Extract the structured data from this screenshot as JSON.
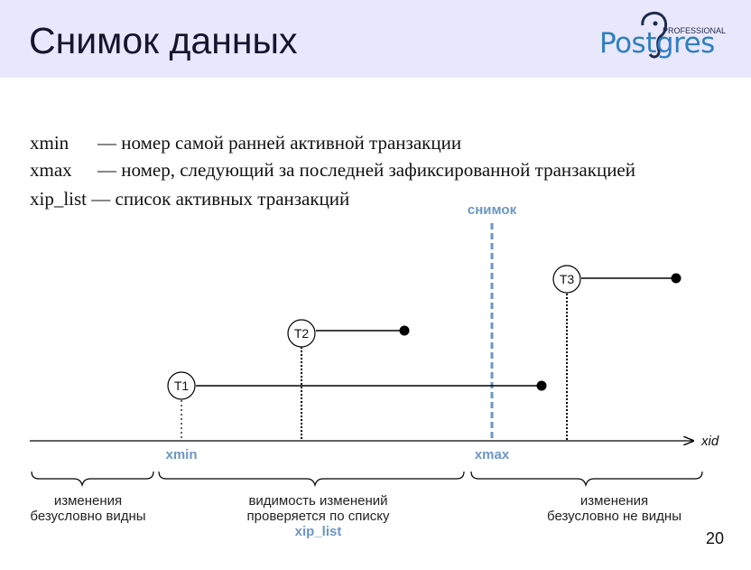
{
  "slide": {
    "title": "Снимок данных",
    "page_number": "20",
    "logo": {
      "brand": "Postgres",
      "tagline": "PROFESSIONAL",
      "icon": "elephant-icon"
    }
  },
  "definitions": [
    {
      "term": "xmin",
      "text": "— номер самой ранней активной транзакции"
    },
    {
      "term": "xmax",
      "text": "— номер, следующий за последней зафиксированной транзакцией"
    },
    {
      "term": "xip_list",
      "text": "— список активных транзакций"
    }
  ],
  "diagram": {
    "axis_label": "xid",
    "snapshot_label": "снимок",
    "markers": {
      "xmin": "xmin",
      "xmax": "xmax"
    },
    "transactions": [
      {
        "name": "T1"
      },
      {
        "name": "T2"
      },
      {
        "name": "T3"
      }
    ],
    "regions": [
      {
        "line1": "изменения",
        "line2": "безусловно видны"
      },
      {
        "line1": "видимость изменений",
        "line2": "проверяется по списку",
        "line3": "xip_list"
      },
      {
        "line1": "изменения",
        "line2": "безусловно не видны"
      }
    ],
    "colors": {
      "accent": "#6b96c8",
      "line": "#000000",
      "header_bg": "#e9e7fb",
      "logo": "#2f7fc1"
    }
  }
}
